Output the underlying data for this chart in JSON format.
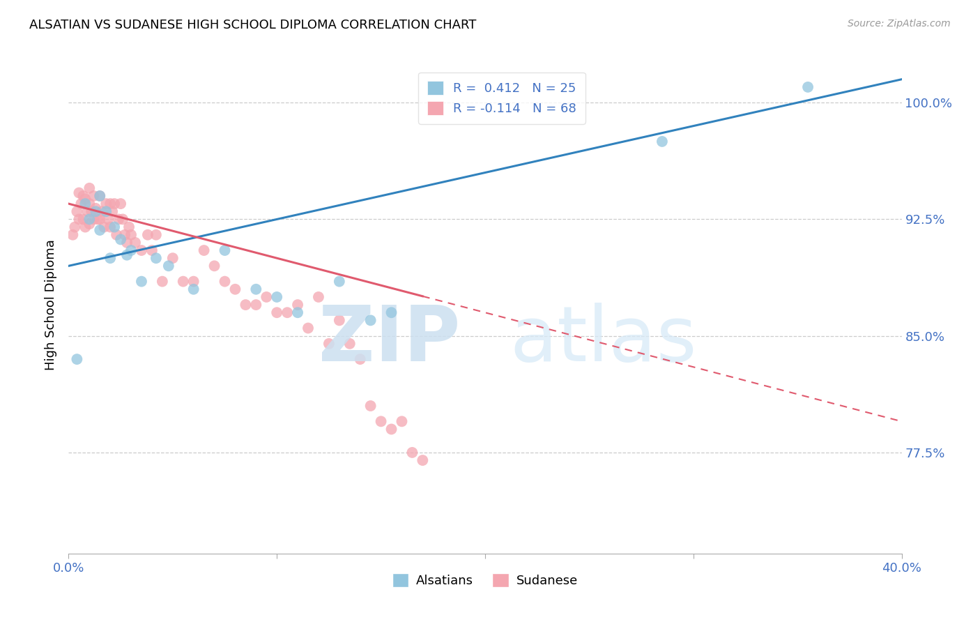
{
  "title": "ALSATIAN VS SUDANESE HIGH SCHOOL DIPLOMA CORRELATION CHART",
  "source": "Source: ZipAtlas.com",
  "ylabel": "High School Diploma",
  "yticks": [
    77.5,
    85.0,
    92.5,
    100.0
  ],
  "xmin": 0.0,
  "xmax": 40.0,
  "ymin": 71.0,
  "ymax": 103.0,
  "alsatian_color": "#92c5de",
  "sudanese_color": "#f4a6b0",
  "alsatian_line_color": "#3182bd",
  "sudanese_line_color": "#e05a6e",
  "alsatian_x": [
    0.4,
    0.8,
    1.0,
    1.3,
    1.5,
    1.5,
    1.8,
    2.0,
    2.2,
    2.5,
    2.8,
    3.0,
    3.5,
    4.2,
    4.8,
    6.0,
    7.5,
    9.0,
    10.0,
    11.0,
    13.0,
    14.5,
    15.5,
    28.5,
    35.5
  ],
  "alsatian_y": [
    83.5,
    93.5,
    92.5,
    93.0,
    94.0,
    91.8,
    93.0,
    90.0,
    92.0,
    91.2,
    90.2,
    90.5,
    88.5,
    90.0,
    89.5,
    88.0,
    90.5,
    88.0,
    87.5,
    86.5,
    88.5,
    86.0,
    86.5,
    97.5,
    101.0
  ],
  "sudanese_x": [
    0.2,
    0.3,
    0.4,
    0.5,
    0.5,
    0.6,
    0.7,
    0.7,
    0.8,
    0.8,
    0.9,
    1.0,
    1.0,
    1.0,
    1.1,
    1.2,
    1.2,
    1.3,
    1.4,
    1.5,
    1.5,
    1.6,
    1.7,
    1.8,
    1.9,
    2.0,
    2.0,
    2.1,
    2.2,
    2.3,
    2.4,
    2.5,
    2.6,
    2.7,
    2.8,
    2.9,
    3.0,
    3.2,
    3.5,
    3.8,
    4.0,
    4.2,
    4.5,
    5.0,
    5.5,
    6.0,
    6.5,
    7.0,
    7.5,
    8.0,
    8.5,
    9.0,
    9.5,
    10.0,
    10.5,
    11.0,
    11.5,
    12.0,
    12.5,
    13.0,
    13.5,
    14.0,
    14.5,
    15.0,
    15.5,
    16.0,
    16.5,
    17.0
  ],
  "sudanese_y": [
    91.5,
    92.0,
    93.0,
    94.2,
    92.5,
    93.5,
    94.0,
    92.5,
    93.8,
    92.0,
    93.0,
    94.5,
    93.5,
    92.2,
    93.0,
    94.0,
    92.5,
    93.2,
    92.5,
    94.0,
    92.5,
    93.0,
    92.0,
    93.5,
    92.5,
    93.5,
    92.0,
    93.0,
    93.5,
    91.5,
    92.5,
    93.5,
    92.5,
    91.5,
    91.0,
    92.0,
    91.5,
    91.0,
    90.5,
    91.5,
    90.5,
    91.5,
    88.5,
    90.0,
    88.5,
    88.5,
    90.5,
    89.5,
    88.5,
    88.0,
    87.0,
    87.0,
    87.5,
    86.5,
    86.5,
    87.0,
    85.5,
    87.5,
    84.5,
    86.0,
    84.5,
    83.5,
    80.5,
    79.5,
    79.0,
    79.5,
    77.5,
    77.0
  ],
  "alsatian_line_x0": 0.0,
  "alsatian_line_x1": 40.0,
  "alsatian_line_y0": 89.5,
  "alsatian_line_y1": 101.5,
  "sudanese_line_x0": 0.0,
  "sudanese_line_x1": 40.0,
  "sudanese_line_y0": 93.5,
  "sudanese_line_y1": 79.5,
  "sudanese_solid_end": 17.0
}
